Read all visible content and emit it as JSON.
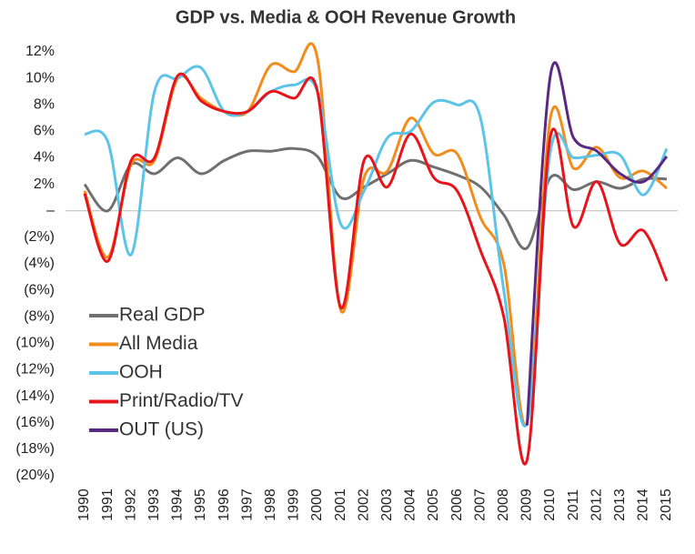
{
  "chart_data": {
    "type": "line",
    "title": "GDP vs. Media & OOH Revenue Growth",
    "categories": [
      "1990",
      "1991",
      "1992",
      "1993",
      "1994",
      "1995",
      "1996",
      "1997",
      "1998",
      "1999",
      "2000",
      "2001",
      "2002",
      "2003",
      "2004",
      "2005",
      "2006",
      "2007",
      "2008",
      "2009",
      "2010",
      "2011",
      "2012",
      "2013",
      "2014",
      "2015"
    ],
    "series": [
      {
        "name": "Real GDP",
        "color": "#707070",
        "values": [
          2.0,
          0.0,
          3.5,
          2.8,
          4.0,
          2.8,
          3.8,
          4.5,
          4.5,
          4.7,
          4.1,
          1.0,
          1.8,
          2.8,
          3.8,
          3.3,
          2.7,
          1.8,
          -0.3,
          -2.8,
          2.5,
          1.6,
          2.2,
          1.7,
          2.4,
          2.4
        ]
      },
      {
        "name": "All Media",
        "color": "#f28c1c",
        "values": [
          1.5,
          -3.5,
          3.5,
          3.8,
          10.0,
          8.5,
          7.5,
          7.5,
          11.0,
          10.5,
          11.5,
          -7.5,
          2.5,
          3.0,
          7.0,
          4.3,
          4.3,
          -0.5,
          -4.0,
          -16.0,
          7.0,
          3.2,
          4.8,
          2.5,
          3.0,
          1.7
        ]
      },
      {
        "name": "OOH",
        "color": "#5bc4e8",
        "values": [
          5.8,
          5.2,
          -3.3,
          9.0,
          10.0,
          10.8,
          7.5,
          7.5,
          9.0,
          9.5,
          9.0,
          -1.0,
          1.5,
          5.5,
          6.0,
          8.2,
          8.0,
          7.0,
          -6.0,
          -16.0,
          4.5,
          4.0,
          4.2,
          4.2,
          1.2,
          4.7
        ]
      },
      {
        "name": "Print/Radio/TV",
        "color": "#e8141c",
        "values": [
          1.3,
          -3.8,
          3.8,
          4.0,
          10.2,
          8.3,
          7.5,
          7.5,
          9.0,
          8.5,
          9.0,
          -7.3,
          3.8,
          1.8,
          5.8,
          2.5,
          1.5,
          -3.0,
          -8.0,
          -18.8,
          5.6,
          -1.2,
          2.2,
          -2.5,
          -1.5,
          -5.3
        ]
      },
      {
        "name": "OUT (US)",
        "color": "#5a2a82",
        "values": [
          null,
          null,
          null,
          null,
          null,
          null,
          null,
          null,
          null,
          null,
          null,
          null,
          null,
          null,
          null,
          null,
          null,
          null,
          null,
          -16.2,
          10.2,
          5.5,
          4.5,
          2.8,
          2.2,
          4.1
        ]
      }
    ],
    "ylim": [
      -20,
      12
    ],
    "yticks": [
      {
        "value": -20,
        "label": "(20%)"
      },
      {
        "value": -18,
        "label": "(18%)"
      },
      {
        "value": -16,
        "label": "(16%)"
      },
      {
        "value": -14,
        "label": "(14%)"
      },
      {
        "value": -12,
        "label": "(12%)"
      },
      {
        "value": -10,
        "label": "(10%)"
      },
      {
        "value": -8,
        "label": "(8%)"
      },
      {
        "value": -6,
        "label": "(6%)"
      },
      {
        "value": -4,
        "label": "(4%)"
      },
      {
        "value": -2,
        "label": "(2%)"
      },
      {
        "value": 0,
        "label": "–"
      },
      {
        "value": 2,
        "label": "2%"
      },
      {
        "value": 4,
        "label": "4%"
      },
      {
        "value": 6,
        "label": "6%"
      },
      {
        "value": 8,
        "label": "8%"
      },
      {
        "value": 10,
        "label": "10%"
      },
      {
        "value": 12,
        "label": "12%"
      }
    ]
  }
}
